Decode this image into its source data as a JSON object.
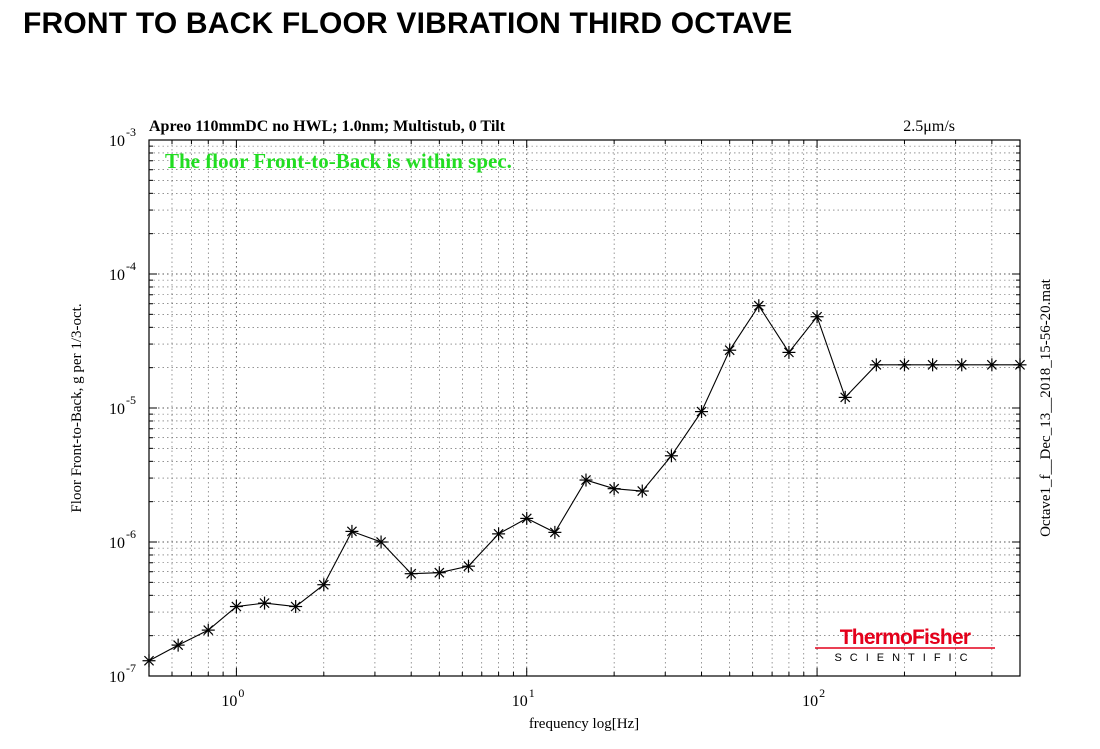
{
  "page": {
    "title": "FRONT TO BACK FLOOR VIBRATION THIRD OCTAVE"
  },
  "chart_data": {
    "type": "line",
    "title": "Apreo 110mmDC no HWL; 1.0nm; Multistub, 0 Tilt",
    "spec_label": "2.5μm/s",
    "annotation": "The floor Front-to-Back is within spec.",
    "annotation_color": "#22dd22",
    "xlabel": "frequency  log[Hz]",
    "ylabel": "Floor Front-to-Back,  g per 1/3-oct.",
    "file_label": "Octave1_f__Dec_13__2018_15-56-20.mat",
    "x_scale": "log",
    "y_scale": "log",
    "xlim": [
      0.5,
      500
    ],
    "ylim": [
      1e-07,
      0.001
    ],
    "grid": true,
    "x_ticks": [
      {
        "value": 1,
        "base": "10",
        "exp": "0"
      },
      {
        "value": 10,
        "base": "10",
        "exp": "1"
      },
      {
        "value": 100,
        "base": "10",
        "exp": "2"
      }
    ],
    "y_ticks": [
      {
        "value": 1e-07,
        "base": "10",
        "exp": "-7"
      },
      {
        "value": 1e-06,
        "base": "10",
        "exp": "-6"
      },
      {
        "value": 1e-05,
        "base": "10",
        "exp": "-5"
      },
      {
        "value": 0.0001,
        "base": "10",
        "exp": "-4"
      },
      {
        "value": 0.001,
        "base": "10",
        "exp": "-3"
      }
    ],
    "series": [
      {
        "marker": "asterisk",
        "color": "#000000",
        "x": [
          0.5,
          0.63,
          0.8,
          1.0,
          1.25,
          1.6,
          2.0,
          2.5,
          3.15,
          4.0,
          5.0,
          6.3,
          8.0,
          10,
          12.5,
          16,
          20,
          25,
          31.5,
          40,
          50,
          63,
          80,
          100,
          125,
          160,
          200,
          250,
          315,
          400,
          500
        ],
        "y": [
          1.3e-07,
          1.7e-07,
          2.2e-07,
          3.3e-07,
          3.5e-07,
          3.3e-07,
          4.8e-07,
          1.2e-06,
          1e-06,
          5.8e-07,
          5.9e-07,
          6.6e-07,
          1.15e-06,
          1.5e-06,
          1.18e-06,
          2.9e-06,
          2.5e-06,
          2.4e-06,
          4.4e-06,
          9.4e-06,
          2.7e-05,
          5.8e-05,
          2.6e-05,
          4.8e-05,
          1.2e-05,
          2.1e-05,
          2.1e-05,
          2.1e-05,
          2.1e-05,
          2.1e-05,
          2.1e-05
        ]
      }
    ]
  },
  "logo": {
    "brand_top": "ThermoFisher",
    "brand_bottom": "SCIENTIFIC",
    "color": "#e4001b"
  }
}
